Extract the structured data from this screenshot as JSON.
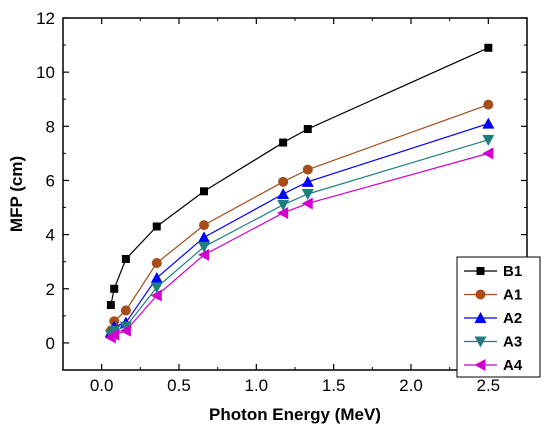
{
  "chart_data": {
    "type": "line",
    "xlabel": "Photon Energy (MeV)",
    "ylabel": "MFP (cm)",
    "xlim": [
      -0.25,
      2.75
    ],
    "ylim": [
      -1,
      12
    ],
    "xticks": [
      "0.0",
      "0.5",
      "1.0",
      "1.5",
      "2.0",
      "2.5"
    ],
    "yticks": [
      "0",
      "2",
      "4",
      "6",
      "8",
      "10",
      "12"
    ],
    "x": [
      0.0595,
      0.081,
      0.1566,
      0.3561,
      0.6617,
      1.1732,
      1.3325,
      2.5
    ],
    "series": [
      {
        "name": "B1",
        "color": "#000000",
        "marker": "square",
        "values": [
          1.4,
          2.0,
          3.1,
          4.3,
          5.6,
          7.4,
          7.9,
          10.9
        ]
      },
      {
        "name": "A1",
        "color": "#a64d1a",
        "marker": "circle",
        "values": [
          0.45,
          0.8,
          1.2,
          2.95,
          4.35,
          5.95,
          6.4,
          8.8
        ]
      },
      {
        "name": "A2",
        "color": "#0000ff",
        "marker": "triangle-up",
        "values": [
          0.4,
          0.6,
          0.75,
          2.4,
          3.9,
          5.5,
          5.95,
          8.1
        ]
      },
      {
        "name": "A3",
        "color": "#1f7f7f",
        "marker": "triangle-down",
        "values": [
          0.3,
          0.45,
          0.6,
          2.05,
          3.55,
          5.1,
          5.5,
          7.5
        ]
      },
      {
        "name": "A4",
        "color": "#d000d0",
        "marker": "triangle-left",
        "values": [
          0.2,
          0.3,
          0.45,
          1.75,
          3.25,
          4.8,
          5.15,
          7.0
        ]
      }
    ],
    "legend_position": "bottom-right",
    "grid": false
  }
}
